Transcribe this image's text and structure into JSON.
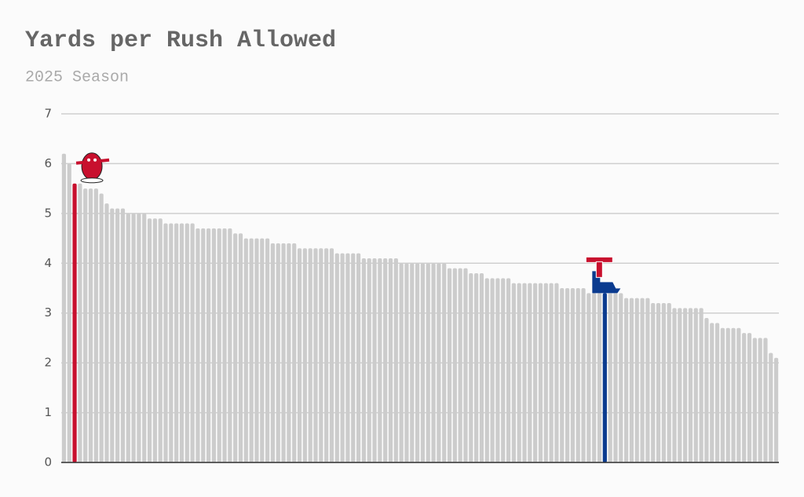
{
  "chart_data": {
    "type": "bar",
    "title": "Yards per Rush Allowed",
    "subtitle": "2025 Season",
    "values": [
      6.2,
      6.0,
      5.6,
      5.6,
      5.5,
      5.5,
      5.5,
      5.4,
      5.2,
      5.1,
      5.1,
      5.1,
      5.0,
      5.0,
      5.0,
      5.0,
      4.9,
      4.9,
      4.9,
      4.8,
      4.8,
      4.8,
      4.8,
      4.8,
      4.8,
      4.7,
      4.7,
      4.7,
      4.7,
      4.7,
      4.7,
      4.7,
      4.6,
      4.6,
      4.5,
      4.5,
      4.5,
      4.5,
      4.5,
      4.4,
      4.4,
      4.4,
      4.4,
      4.4,
      4.3,
      4.3,
      4.3,
      4.3,
      4.3,
      4.3,
      4.3,
      4.2,
      4.2,
      4.2,
      4.2,
      4.2,
      4.1,
      4.1,
      4.1,
      4.1,
      4.1,
      4.1,
      4.1,
      4.0,
      4.0,
      4.0,
      4.0,
      4.0,
      4.0,
      4.0,
      4.0,
      4.0,
      3.9,
      3.9,
      3.9,
      3.9,
      3.8,
      3.8,
      3.8,
      3.7,
      3.7,
      3.7,
      3.7,
      3.7,
      3.6,
      3.6,
      3.6,
      3.6,
      3.6,
      3.6,
      3.6,
      3.6,
      3.6,
      3.5,
      3.5,
      3.5,
      3.5,
      3.5,
      3.4,
      3.4,
      3.4,
      3.4,
      3.4,
      3.4,
      3.4,
      3.3,
      3.3,
      3.3,
      3.3,
      3.3,
      3.2,
      3.2,
      3.2,
      3.2,
      3.1,
      3.1,
      3.1,
      3.1,
      3.1,
      3.1,
      2.9,
      2.8,
      2.8,
      2.7,
      2.7,
      2.7,
      2.7,
      2.6,
      2.6,
      2.5,
      2.5,
      2.5,
      2.2,
      2.1
    ],
    "color": "#cccccc",
    "highlight_colors": {
      "2": "#c8102e",
      "101": "#0b3b8f"
    },
    "ylim": [
      0,
      7
    ],
    "yticks": [
      0,
      1,
      2,
      3,
      4,
      5,
      6,
      7
    ],
    "grid": true
  }
}
